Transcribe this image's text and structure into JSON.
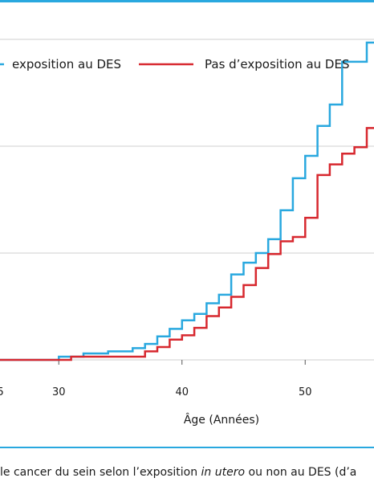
{
  "chart_data": {
    "type": "line",
    "xlabel": "Âge (Années)",
    "x_ticks": [
      30,
      40,
      50
    ],
    "xlim": [
      25,
      56
    ],
    "ylim": [
      0,
      0.21
    ],
    "y_gridlines": [
      0,
      0.05,
      0.1,
      0.15,
      0.2
    ],
    "grid": true,
    "legend_position": "top",
    "colors": {
      "exposed": "#29a8df",
      "unexposed": "#d7282f"
    },
    "series": [
      {
        "name": "exposition au DES",
        "line_style": "step",
        "color": "#29a8df",
        "points": [
          [
            25,
            0
          ],
          [
            30,
            0
          ],
          [
            30,
            0.0015
          ],
          [
            32,
            0.0015
          ],
          [
            32,
            0.003
          ],
          [
            34,
            0.003
          ],
          [
            34,
            0.004
          ],
          [
            36,
            0.004
          ],
          [
            36,
            0.0055
          ],
          [
            37,
            0.0055
          ],
          [
            37,
            0.0075
          ],
          [
            38,
            0.0075
          ],
          [
            38,
            0.011
          ],
          [
            39,
            0.011
          ],
          [
            39,
            0.0145
          ],
          [
            40,
            0.0145
          ],
          [
            40,
            0.0185
          ],
          [
            41,
            0.0185
          ],
          [
            41,
            0.0215
          ],
          [
            42,
            0.0215
          ],
          [
            42,
            0.0265
          ],
          [
            43,
            0.0265
          ],
          [
            43,
            0.0305
          ],
          [
            44,
            0.0305
          ],
          [
            44,
            0.04
          ],
          [
            45,
            0.04
          ],
          [
            45,
            0.0455
          ],
          [
            46,
            0.0455
          ],
          [
            46,
            0.05
          ],
          [
            47,
            0.05
          ],
          [
            47,
            0.0565
          ],
          [
            48,
            0.0565
          ],
          [
            48,
            0.07
          ],
          [
            49,
            0.07
          ],
          [
            49,
            0.085
          ],
          [
            50,
            0.085
          ],
          [
            50,
            0.0955
          ],
          [
            51,
            0.0955
          ],
          [
            51,
            0.1095
          ],
          [
            52,
            0.1095
          ],
          [
            52,
            0.1195
          ],
          [
            53,
            0.1195
          ],
          [
            53,
            0.1395
          ],
          [
            55,
            0.1395
          ],
          [
            55,
            0.1485
          ],
          [
            56,
            0.1485
          ],
          [
            56,
            0.1505
          ]
        ]
      },
      {
        "name": "Pas d’exposition au DES",
        "line_style": "step",
        "color": "#d7282f",
        "points": [
          [
            25,
            0
          ],
          [
            31,
            0
          ],
          [
            31,
            0.0015
          ],
          [
            37,
            0.0015
          ],
          [
            37,
            0.004
          ],
          [
            38,
            0.004
          ],
          [
            38,
            0.006
          ],
          [
            39,
            0.006
          ],
          [
            39,
            0.0095
          ],
          [
            40,
            0.0095
          ],
          [
            40,
            0.0115
          ],
          [
            41,
            0.0115
          ],
          [
            41,
            0.015
          ],
          [
            42,
            0.015
          ],
          [
            42,
            0.0205
          ],
          [
            43,
            0.0205
          ],
          [
            43,
            0.0245
          ],
          [
            44,
            0.0245
          ],
          [
            44,
            0.0295
          ],
          [
            45,
            0.0295
          ],
          [
            45,
            0.035
          ],
          [
            46,
            0.035
          ],
          [
            46,
            0.043
          ],
          [
            47,
            0.043
          ],
          [
            47,
            0.0495
          ],
          [
            48,
            0.0495
          ],
          [
            48,
            0.0555
          ],
          [
            49,
            0.0555
          ],
          [
            49,
            0.0575
          ],
          [
            50,
            0.0575
          ],
          [
            50,
            0.0665
          ],
          [
            51,
            0.0665
          ],
          [
            51,
            0.0865
          ],
          [
            52,
            0.0865
          ],
          [
            52,
            0.0915
          ],
          [
            53,
            0.0915
          ],
          [
            53,
            0.0965
          ],
          [
            54,
            0.0965
          ],
          [
            54,
            0.0995
          ],
          [
            55,
            0.0995
          ],
          [
            55,
            0.1085
          ],
          [
            56,
            0.1085
          ]
        ]
      }
    ]
  },
  "caption": {
    "before": "le cancer du sein selon l’exposition ",
    "italic": "in utero",
    "after": " ou non au DES (d’a"
  }
}
